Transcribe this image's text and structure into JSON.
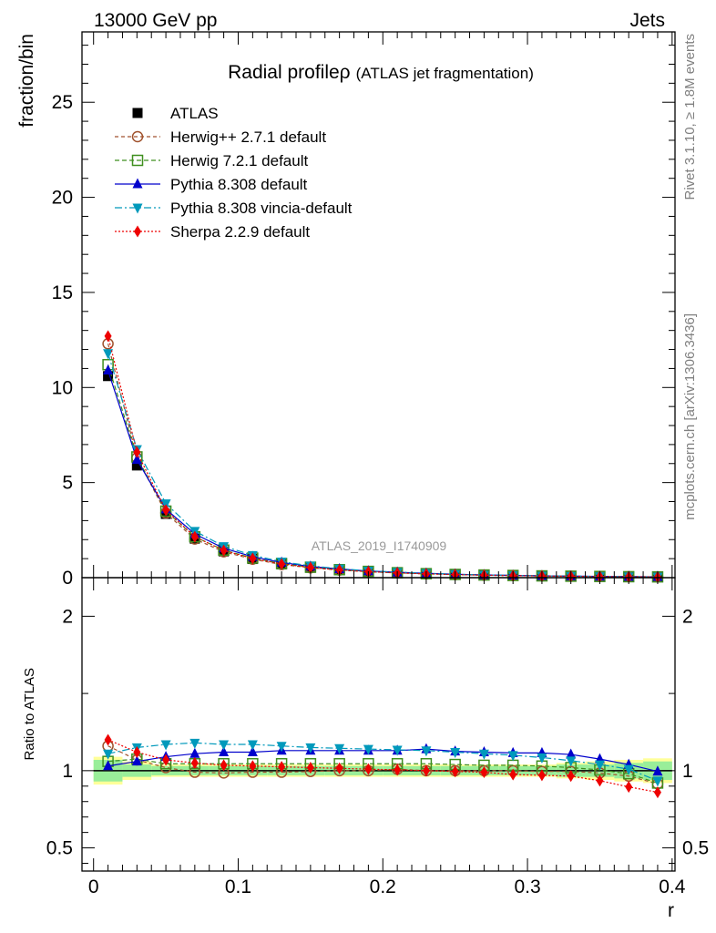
{
  "header": {
    "left": "13000 GeV pp",
    "right": "Jets"
  },
  "side_text": {
    "rivet": "Rivet 3.1.10, ≥ 1.8M events",
    "url": "mcplots.cern.ch [arXiv:1306.3436]"
  },
  "watermark": "ATLAS_2019_I1740909",
  "chart_data": {
    "type": "line",
    "title": "Radial profileρ (ATLAS jet fragmentation)",
    "title_main": "Radial profileρ",
    "title_sub": "(ATLAS jet fragmentation)",
    "xlabel": "r",
    "ylabel": "fraction/bin",
    "ratio_ylabel": "Ratio to ATLAS",
    "xlim": [
      -0.008,
      0.402
    ],
    "ylim": [
      0,
      28.7
    ],
    "ratio_ylim": [
      0.35,
      2.25
    ],
    "xticks": [
      "0",
      "0.1",
      "0.2",
      "0.3",
      "0.4"
    ],
    "yticks": [
      "0",
      "5",
      "10",
      "15",
      "20",
      "25"
    ],
    "ratio_yticks": [
      "0.5",
      "1",
      "2"
    ],
    "legend_position": "top-left",
    "x": [
      0.01,
      0.03,
      0.05,
      0.07,
      0.09,
      0.11,
      0.13,
      0.15,
      0.17,
      0.19,
      0.21,
      0.23,
      0.25,
      0.27,
      0.29,
      0.31,
      0.33,
      0.35,
      0.37,
      0.39
    ],
    "band_edges": [
      0.0,
      0.02,
      0.04,
      0.06,
      0.08,
      0.1,
      0.12,
      0.14,
      0.16,
      0.18,
      0.2,
      0.22,
      0.24,
      0.26,
      0.28,
      0.3,
      0.32,
      0.34,
      0.36,
      0.38,
      0.4
    ],
    "band_stat": [
      0.07,
      0.04,
      0.03,
      0.03,
      0.03,
      0.03,
      0.03,
      0.03,
      0.03,
      0.03,
      0.03,
      0.03,
      0.03,
      0.03,
      0.03,
      0.03,
      0.04,
      0.04,
      0.05,
      0.06
    ],
    "band_total": [
      0.09,
      0.06,
      0.04,
      0.04,
      0.04,
      0.04,
      0.04,
      0.04,
      0.04,
      0.04,
      0.04,
      0.04,
      0.04,
      0.04,
      0.04,
      0.04,
      0.05,
      0.06,
      0.07,
      0.08
    ],
    "series": [
      {
        "name": "ATLAS",
        "color": "#000000",
        "marker": "square-filled",
        "dash": "none",
        "values": [
          10.6,
          5.9,
          3.35,
          2.05,
          1.38,
          0.98,
          0.7,
          0.52,
          0.4,
          0.31,
          0.25,
          0.2,
          0.16,
          0.13,
          0.11,
          0.09,
          0.075,
          0.062,
          0.052,
          0.045
        ],
        "ratio": [
          1,
          1,
          1,
          1,
          1,
          1,
          1,
          1,
          1,
          1,
          1,
          1,
          1,
          1,
          1,
          1,
          1,
          1,
          1,
          1
        ]
      },
      {
        "name": "Herwig++ 2.7.1 default",
        "color": "#a0522d",
        "marker": "circle-open",
        "dash": "4,3",
        "values": [
          12.3,
          6.3,
          3.4,
          2.03,
          1.36,
          0.97,
          0.69,
          0.52,
          0.4,
          0.31,
          0.25,
          0.2,
          0.16,
          0.13,
          0.11,
          0.09,
          0.075,
          0.061,
          0.05,
          0.041
        ],
        "ratio": [
          1.16,
          1.07,
          1.02,
          0.99,
          0.985,
          0.99,
          0.99,
          0.995,
          1.0,
          1.0,
          1.01,
          1.0,
          1.0,
          1.0,
          1.0,
          0.995,
          0.995,
          0.985,
          0.965,
          0.915
        ]
      },
      {
        "name": "Herwig 7.2.1 default",
        "color": "#3f8f1f",
        "marker": "square-open",
        "dash": "5,3",
        "values": [
          11.2,
          6.35,
          3.5,
          2.15,
          1.45,
          1.03,
          0.74,
          0.55,
          0.42,
          0.33,
          0.26,
          0.21,
          0.17,
          0.14,
          0.115,
          0.093,
          0.077,
          0.063,
          0.05,
          0.041
        ],
        "ratio": [
          1.06,
          1.075,
          1.045,
          1.045,
          1.045,
          1.045,
          1.045,
          1.045,
          1.045,
          1.045,
          1.045,
          1.045,
          1.04,
          1.035,
          1.035,
          1.03,
          1.02,
          1.005,
          0.98,
          0.92
        ]
      },
      {
        "name": "Pythia 8.308 default",
        "color": "#0000cc",
        "marker": "triangle-up",
        "dash": "none",
        "values": [
          10.9,
          6.2,
          3.6,
          2.3,
          1.55,
          1.1,
          0.8,
          0.59,
          0.455,
          0.35,
          0.28,
          0.23,
          0.18,
          0.146,
          0.12,
          0.099,
          0.082,
          0.066,
          0.054,
          0.045
        ],
        "ratio": [
          1.03,
          1.06,
          1.09,
          1.11,
          1.12,
          1.12,
          1.13,
          1.13,
          1.13,
          1.13,
          1.13,
          1.14,
          1.125,
          1.12,
          1.115,
          1.115,
          1.105,
          1.075,
          1.04,
          0.995
        ]
      },
      {
        "name": "Pythia 8.308 vincia-default",
        "color": "#0099bb",
        "marker": "triangle-down",
        "dash": "8,3,2,3",
        "values": [
          11.8,
          6.75,
          3.9,
          2.45,
          1.65,
          1.18,
          0.84,
          0.62,
          0.47,
          0.36,
          0.29,
          0.23,
          0.18,
          0.146,
          0.12,
          0.097,
          0.079,
          0.064,
          0.052,
          0.042
        ],
        "ratio": [
          1.11,
          1.15,
          1.17,
          1.18,
          1.17,
          1.17,
          1.16,
          1.15,
          1.145,
          1.14,
          1.135,
          1.13,
          1.12,
          1.11,
          1.1,
          1.085,
          1.065,
          1.04,
          1.01,
          0.935
        ]
      },
      {
        "name": "Sherpa 2.2.9 default",
        "color": "#ee0000",
        "marker": "diamond",
        "dash": "2,2",
        "values": [
          12.7,
          6.6,
          3.55,
          2.15,
          1.43,
          1.01,
          0.72,
          0.535,
          0.41,
          0.315,
          0.25,
          0.2,
          0.16,
          0.129,
          0.106,
          0.087,
          0.072,
          0.058,
          0.046,
          0.038
        ],
        "ratio": [
          1.2,
          1.12,
          1.07,
          1.05,
          1.035,
          1.03,
          1.025,
          1.02,
          1.015,
          1.01,
          1.005,
          1.0,
          0.995,
          0.99,
          0.975,
          0.97,
          0.965,
          0.935,
          0.895,
          0.86
        ]
      }
    ]
  }
}
